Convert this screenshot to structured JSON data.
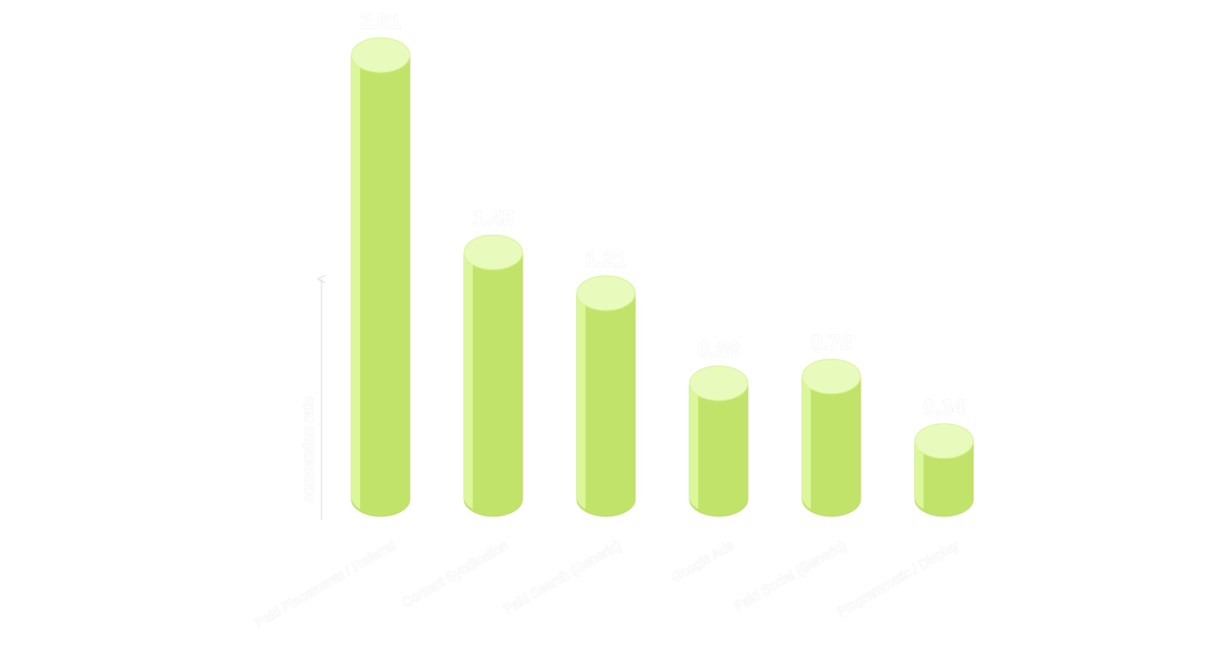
{
  "chart_data": {
    "type": "bar",
    "y_label": "conversion rate",
    "categories": [
      "Paid Placements / Referral",
      "Content Syndication",
      "Paid Search (Generic)",
      "Google Ads",
      "Paid Social (Generic)",
      "Programmatic / Display"
    ],
    "values": [
      2.61,
      1.45,
      1.21,
      0.68,
      0.72,
      0.34
    ],
    "color": "#c2e36a"
  }
}
